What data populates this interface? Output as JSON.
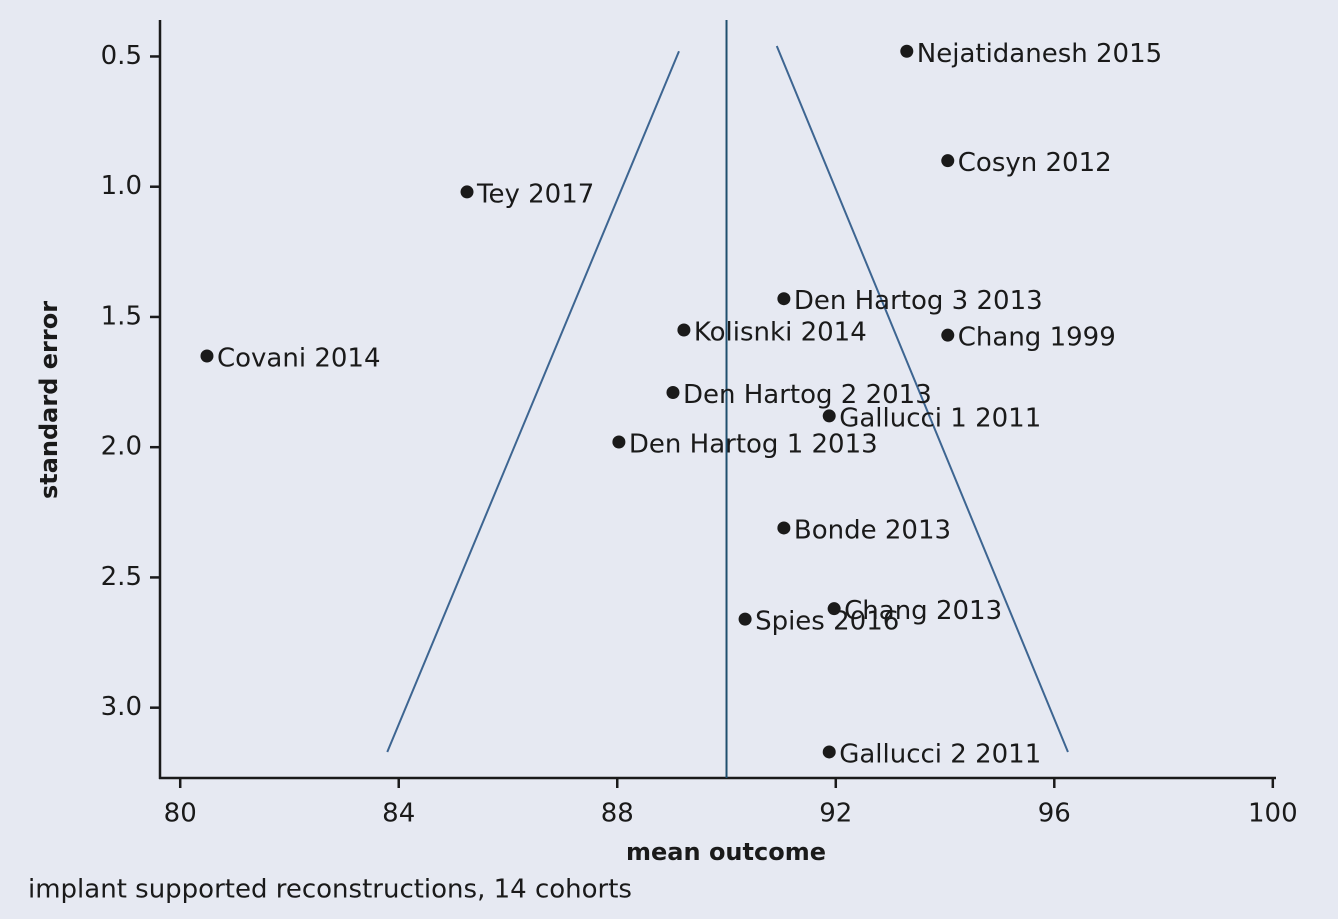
{
  "chart_data": {
    "type": "scatter",
    "xlabel": "mean outcome",
    "ylabel": "standard error",
    "caption": "implant supported reconstructions, 14 cohorts",
    "labels": [
      "Nejatidanesh 2015",
      "Cosyn 2012",
      "Tey 2017",
      "Den Hartog 3 2013",
      "Kolisnki 2014",
      "Chang 1999",
      "Covani 2014",
      "Den Hartog 2 2013",
      "Gallucci 1 2011",
      "Den Hartog 1 2013",
      "Bonde 2013",
      "Chang 2013",
      "Spies 2016",
      "Gallucci 2 2011"
    ],
    "x": [
      93.3,
      94.05,
      85.25,
      91.05,
      89.22,
      94.05,
      80.49,
      89.02,
      91.88,
      88.03,
      91.05,
      91.97,
      90.34,
      91.88
    ],
    "values": [
      0.48,
      0.9,
      1.02,
      1.43,
      1.55,
      1.57,
      1.65,
      1.79,
      1.88,
      1.98,
      2.31,
      2.62,
      2.66,
      3.17
    ],
    "color": "#1a1a1a",
    "pooled_mean": 90,
    "pooled_color": "#1f4f6e",
    "funnel_lines": [
      {
        "x": [
          89.13,
          83.79
        ],
        "y": [
          0.48,
          3.17
        ]
      },
      {
        "x": [
          90.92,
          96.25
        ],
        "y": [
          0.46,
          3.17
        ]
      }
    ],
    "funnel_color": "#3d6591",
    "xlim": [
      79.63,
      100.04
    ],
    "ylim": [
      0.36,
      3.27
    ],
    "y_inverted": true,
    "xticks": [
      80,
      84,
      88,
      92,
      96,
      100
    ],
    "yticks": [
      0.5,
      {
        "value": 1,
        "label": "1.0"
      },
      1.5,
      {
        "value": 2,
        "label": "2.0"
      },
      2.5,
      {
        "value": 3,
        "label": "3.0"
      }
    ]
  }
}
